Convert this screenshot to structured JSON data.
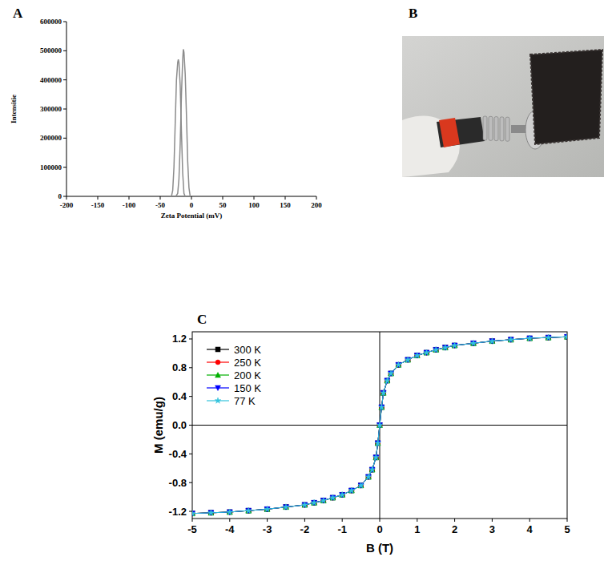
{
  "panel_labels": [
    "A",
    "B",
    "C"
  ],
  "chart_data": [
    {
      "type": "line",
      "xlabel": "Zeta Potential (mV)",
      "ylabel": "Intensitie",
      "xlim": [
        -200,
        200
      ],
      "xticks": [
        -200,
        -150,
        -100,
        -50,
        0,
        50,
        100,
        150,
        200
      ],
      "ylim": [
        0,
        600000
      ],
      "yticks": [
        0,
        100000,
        200000,
        300000,
        400000,
        500000,
        600000
      ],
      "series": [
        {
          "color": "#8c8c8c",
          "x": [
            -35,
            -32,
            -30,
            -28,
            -26,
            -24,
            -22,
            -21,
            -20,
            -18,
            -16,
            -14,
            -12,
            -10
          ],
          "values": [
            0,
            0,
            20000,
            100000,
            250000,
            400000,
            460000,
            470000,
            460000,
            380000,
            220000,
            80000,
            10000,
            0
          ]
        },
        {
          "color": "#8c8c8c",
          "x": [
            -25,
            -22,
            -20,
            -18,
            -16,
            -14,
            -13,
            -12,
            -10,
            -8,
            -6,
            -4,
            -2,
            0
          ],
          "values": [
            0,
            10000,
            60000,
            180000,
            350000,
            470000,
            505000,
            495000,
            420000,
            280000,
            120000,
            30000,
            0,
            0
          ]
        }
      ]
    },
    {
      "type": "line",
      "xlabel": "B (T)",
      "ylabel": "M (emu/g)",
      "xlim": [
        -5,
        5
      ],
      "xticks": [
        -5,
        -4,
        -3,
        -2,
        -1,
        0,
        1,
        2,
        3,
        4,
        5
      ],
      "ylim": [
        -1.3,
        1.3
      ],
      "yticks": [
        -1.2,
        -0.8,
        -0.4,
        {
          "value": 0,
          "label": "0.0"
        },
        0.4,
        0.8,
        1.2
      ],
      "legend": "upper left",
      "x": [
        -5,
        -4.5,
        -4,
        -3.5,
        -3,
        -2.5,
        -2,
        -1.75,
        -1.5,
        -1.25,
        -1,
        -0.75,
        -0.5,
        -0.3,
        -0.2,
        -0.1,
        -0.05,
        0,
        0.05,
        0.1,
        0.2,
        0.3,
        0.5,
        0.75,
        1,
        1.25,
        1.5,
        1.75,
        2,
        2.5,
        3,
        3.5,
        4,
        4.5,
        5
      ],
      "series": [
        {
          "name": "300 K",
          "color": "#000000",
          "marker": "square",
          "values": [
            -1.23,
            -1.22,
            -1.21,
            -1.19,
            -1.17,
            -1.14,
            -1.11,
            -1.08,
            -1.05,
            -1.01,
            -0.97,
            -0.91,
            -0.84,
            -0.72,
            -0.62,
            -0.45,
            -0.25,
            0,
            0.25,
            0.45,
            0.62,
            0.72,
            0.84,
            0.91,
            0.97,
            1.01,
            1.05,
            1.08,
            1.11,
            1.14,
            1.17,
            1.19,
            1.21,
            1.22,
            1.23
          ]
        },
        {
          "name": "250 K",
          "color": "#ff0000",
          "marker": "circle",
          "values": [
            -1.23,
            -1.22,
            -1.21,
            -1.19,
            -1.17,
            -1.14,
            -1.11,
            -1.08,
            -1.05,
            -1.01,
            -0.97,
            -0.91,
            -0.84,
            -0.72,
            -0.62,
            -0.45,
            -0.25,
            0,
            0.25,
            0.45,
            0.62,
            0.72,
            0.84,
            0.91,
            0.97,
            1.01,
            1.05,
            1.08,
            1.11,
            1.14,
            1.17,
            1.19,
            1.21,
            1.22,
            1.23
          ]
        },
        {
          "name": "200 K",
          "color": "#00b000",
          "marker": "triangle-up",
          "values": [
            -1.23,
            -1.22,
            -1.21,
            -1.19,
            -1.17,
            -1.14,
            -1.11,
            -1.08,
            -1.05,
            -1.01,
            -0.97,
            -0.91,
            -0.84,
            -0.72,
            -0.62,
            -0.45,
            -0.25,
            0,
            0.25,
            0.45,
            0.62,
            0.72,
            0.84,
            0.91,
            0.97,
            1.01,
            1.05,
            1.08,
            1.11,
            1.14,
            1.17,
            1.19,
            1.21,
            1.22,
            1.23
          ]
        },
        {
          "name": "150 K",
          "color": "#0000ff",
          "marker": "triangle-down",
          "values": [
            -1.23,
            -1.22,
            -1.21,
            -1.19,
            -1.17,
            -1.14,
            -1.11,
            -1.08,
            -1.05,
            -1.01,
            -0.97,
            -0.91,
            -0.84,
            -0.72,
            -0.62,
            -0.45,
            -0.25,
            0,
            0.25,
            0.45,
            0.62,
            0.72,
            0.84,
            0.91,
            0.97,
            1.01,
            1.05,
            1.08,
            1.11,
            1.14,
            1.17,
            1.19,
            1.21,
            1.22,
            1.23
          ]
        },
        {
          "name": "77 K",
          "color": "#33c3dd",
          "marker": "star",
          "values": [
            -1.23,
            -1.22,
            -1.21,
            -1.19,
            -1.17,
            -1.14,
            -1.11,
            -1.08,
            -1.05,
            -1.01,
            -0.97,
            -0.91,
            -0.84,
            -0.72,
            -0.62,
            -0.45,
            -0.25,
            0,
            0.25,
            0.45,
            0.62,
            0.72,
            0.84,
            0.91,
            0.97,
            1.01,
            1.05,
            1.08,
            1.11,
            1.14,
            1.17,
            1.19,
            1.21,
            1.22,
            1.23
          ]
        }
      ]
    }
  ]
}
